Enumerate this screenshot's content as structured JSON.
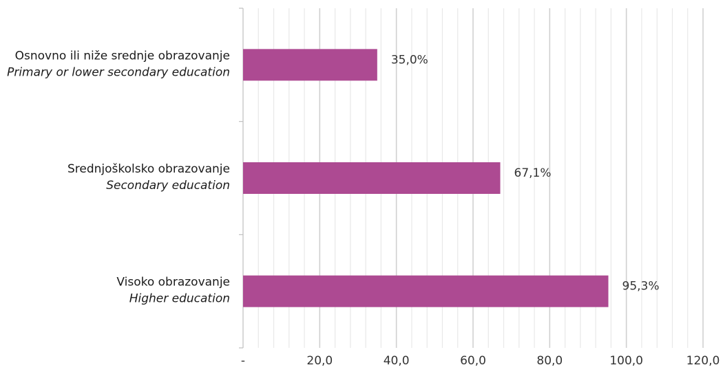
{
  "chart_data": {
    "type": "bar",
    "orientation": "horizontal",
    "categories": [
      {
        "primary": "Osnovno ili niže srednje obrazovanje",
        "secondary": "Primary or lower secondary education"
      },
      {
        "primary": "Srednjoškolsko obrazovanje",
        "secondary": "Secondary education"
      },
      {
        "primary": "Visoko obrazovanje",
        "secondary": "Higher education"
      }
    ],
    "values": [
      35.0,
      67.1,
      95.3
    ],
    "data_labels": [
      "35,0%",
      "67,1%",
      "95,3%"
    ],
    "xlim": [
      0,
      120
    ],
    "x_ticks": [
      0,
      20,
      40,
      60,
      80,
      100,
      120
    ],
    "x_tick_labels": [
      "-",
      "20,0",
      "40,0",
      "60,0",
      "80,0",
      "100,0",
      "120,0"
    ],
    "grid": true,
    "bar_color": "#ad4a92",
    "major_grid_color": "#d0d0d0",
    "minor_grid_color": "#e8e8e8",
    "axis_color": "#bfbfbf"
  }
}
